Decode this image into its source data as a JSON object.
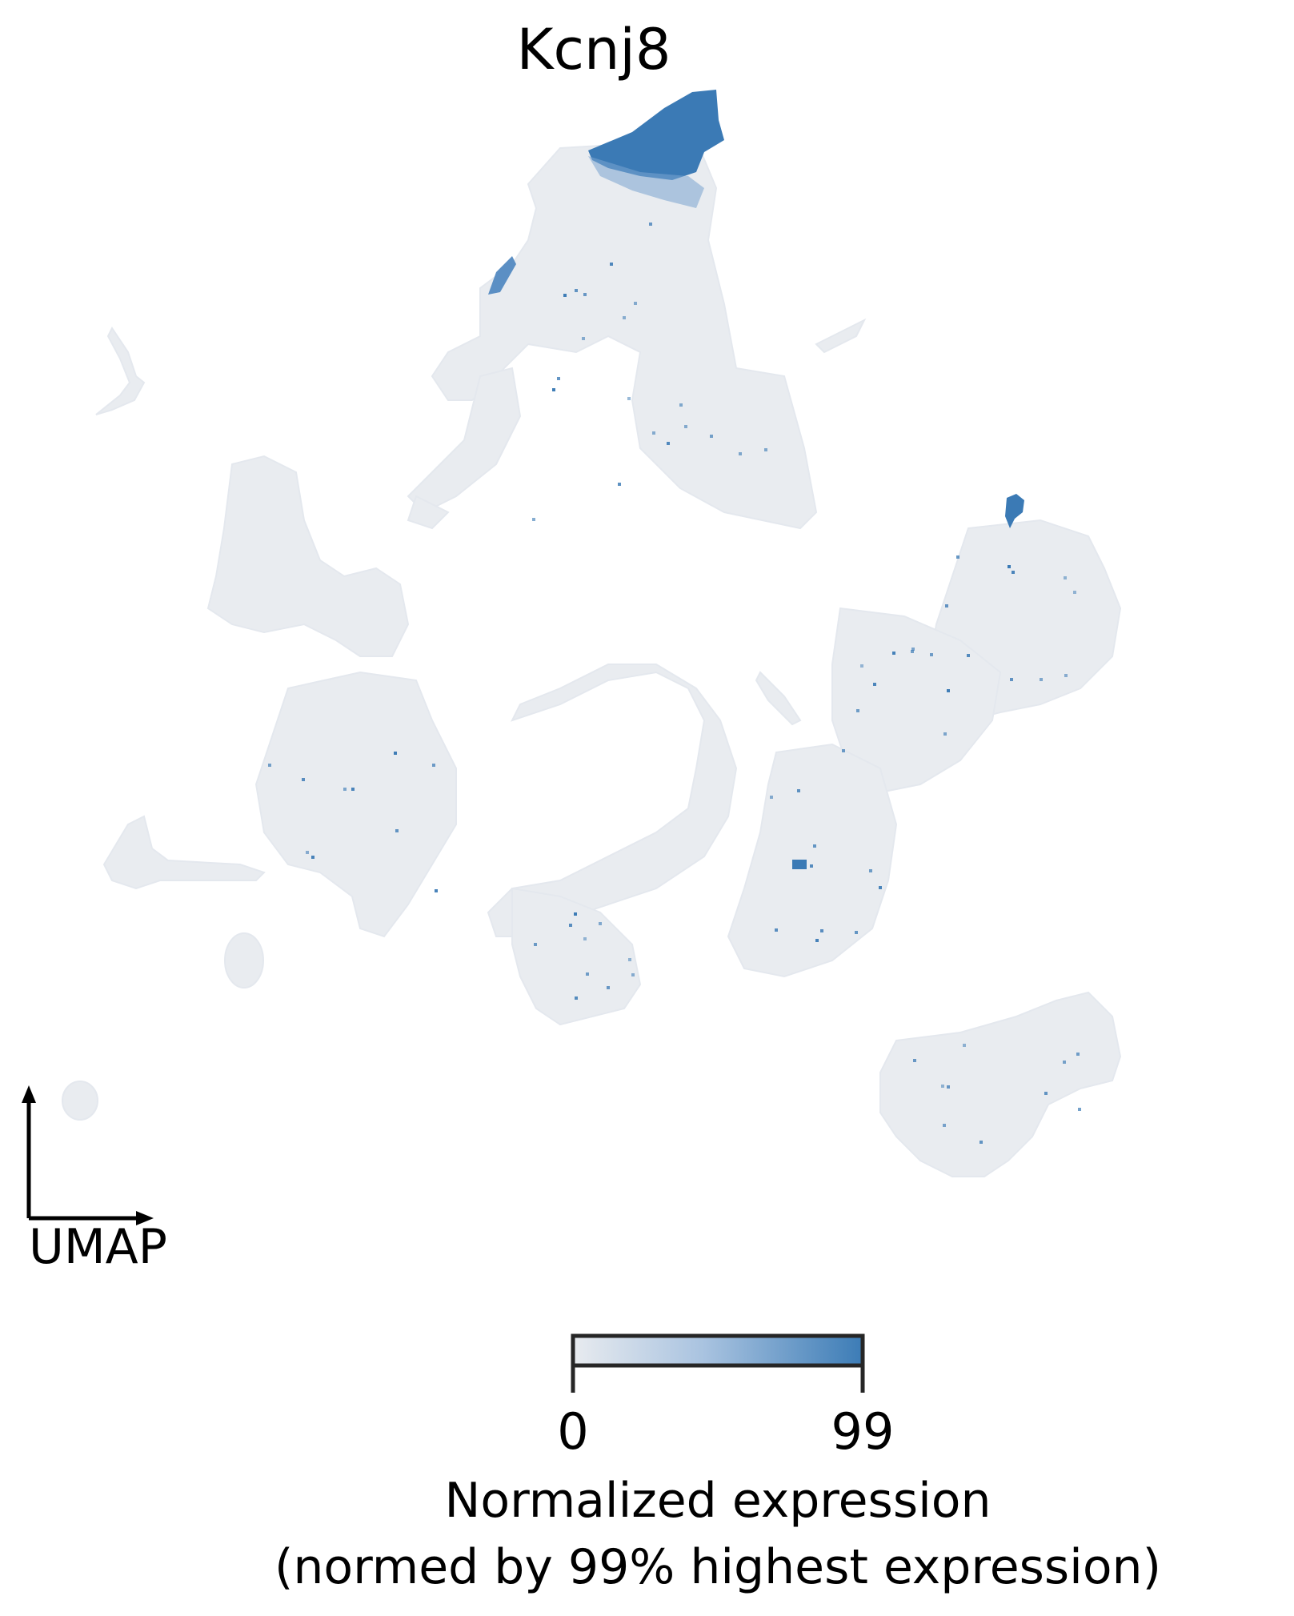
{
  "chart_data": {
    "type": "scatter",
    "title": "Kcnj8",
    "axis_indicator_label": "UMAP",
    "colorbar": {
      "min_label": "0",
      "max_label": "99",
      "label_line1": "Normalized expression",
      "label_line2": "(normed by 99% highest expression)",
      "color_low": "#e8ebef",
      "color_mid": "#a9c3e0",
      "color_high": "#3c7cb6"
    },
    "background_point_color": "#e9ecf0",
    "high_expression_color": "#3b7ab5",
    "legend_placement": "bottom-right",
    "grid": false
  }
}
